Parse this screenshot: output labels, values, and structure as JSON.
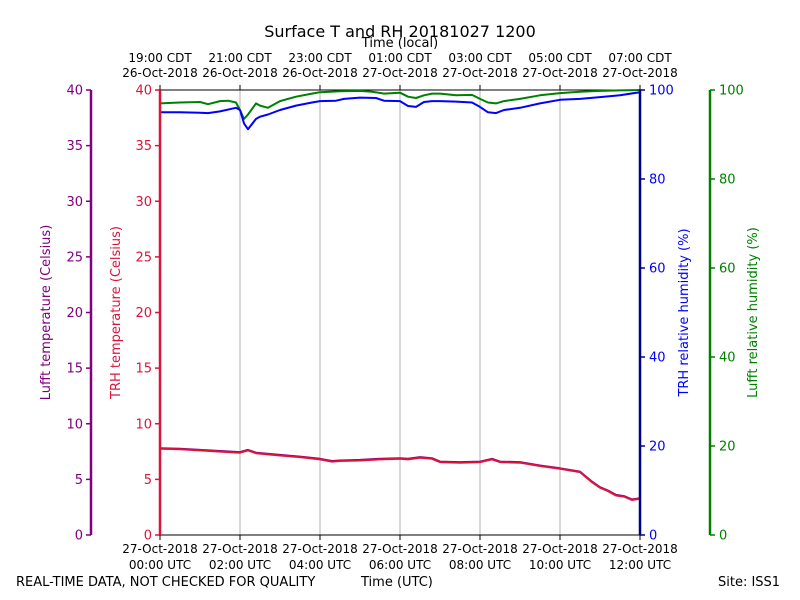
{
  "colors": {
    "lufft_temp": "#800080",
    "trh_temp": "#dc143c",
    "trh_rh": "#0000ff",
    "lufft_rh": "#008000",
    "grid": "#b0b0b0",
    "axis": "#000000",
    "trh_rh_axis": "#00008b"
  },
  "footer": {
    "left": "REAL-TIME DATA, NOT CHECKED FOR QUALITY",
    "center": "Time (UTC)",
    "right": "Site: ISS1"
  },
  "chart_data": {
    "type": "line",
    "title": "Surface T and RH 20181027 1200",
    "top_axis_label": "Time (local)",
    "xlabel": "Time (UTC)",
    "x_unit": "hours since 27-Oct-2018 00:00 UTC",
    "xlim": [
      0,
      12
    ],
    "x_ticks": [
      {
        "x": 0,
        "line1": "27-Oct-2018",
        "line2": "00:00 UTC"
      },
      {
        "x": 2,
        "line1": "27-Oct-2018",
        "line2": "02:00 UTC"
      },
      {
        "x": 4,
        "line1": "27-Oct-2018",
        "line2": "04:00 UTC"
      },
      {
        "x": 6,
        "line1": "27-Oct-2018",
        "line2": "06:00 UTC"
      },
      {
        "x": 8,
        "line1": "27-Oct-2018",
        "line2": "08:00 UTC"
      },
      {
        "x": 10,
        "line1": "27-Oct-2018",
        "line2": "10:00 UTC"
      },
      {
        "x": 12,
        "line1": "27-Oct-2018",
        "line2": "12:00 UTC"
      }
    ],
    "top_ticks": [
      {
        "x": 0,
        "line1": "19:00 CDT",
        "line2": "26-Oct-2018"
      },
      {
        "x": 2,
        "line1": "21:00 CDT",
        "line2": "26-Oct-2018"
      },
      {
        "x": 4,
        "line1": "23:00 CDT",
        "line2": "26-Oct-2018"
      },
      {
        "x": 6,
        "line1": "01:00 CDT",
        "line2": "27-Oct-2018"
      },
      {
        "x": 8,
        "line1": "03:00 CDT",
        "line2": "27-Oct-2018"
      },
      {
        "x": 10,
        "line1": "05:00 CDT",
        "line2": "27-Oct-2018"
      },
      {
        "x": 12,
        "line1": "07:00 CDT",
        "line2": "27-Oct-2018"
      }
    ],
    "axes": {
      "lufft_temp": {
        "label": "Lufft temperature (Celsius)",
        "lim": [
          0,
          40
        ],
        "ticks": [
          0,
          5,
          10,
          15,
          20,
          25,
          30,
          35,
          40
        ]
      },
      "trh_temp": {
        "label": "TRH temperature (Celsius)",
        "lim": [
          0,
          40
        ],
        "ticks": [
          0,
          5,
          10,
          15,
          20,
          25,
          30,
          35,
          40
        ]
      },
      "trh_rh": {
        "label": "TRH relative humidity (%)",
        "lim": [
          0,
          100
        ],
        "ticks": [
          0,
          20,
          40,
          60,
          80,
          100
        ]
      },
      "lufft_rh": {
        "label": "Lufft relative humidity (%)",
        "lim": [
          0,
          100
        ],
        "ticks": [
          0,
          20,
          40,
          60,
          80,
          100
        ]
      }
    },
    "series": [
      {
        "name": "Lufft relative humidity",
        "axis": "lufft_rh",
        "color": "#008000",
        "x": [
          0,
          0.5,
          1,
          1.2,
          1.5,
          1.7,
          1.9,
          2.0,
          2.1,
          2.2,
          2.4,
          2.5,
          2.7,
          3.0,
          3.4,
          3.8,
          4.0,
          4.5,
          5.0,
          5.3,
          5.6,
          6.0,
          6.2,
          6.4,
          6.6,
          6.8,
          7.0,
          7.4,
          7.8,
          8.0,
          8.2,
          8.4,
          8.6,
          9.0,
          9.5,
          10.0,
          10.5,
          11.0,
          11.5,
          12.0
        ],
        "y": [
          97,
          97.2,
          97.3,
          96.8,
          97.5,
          97.6,
          97.2,
          95.5,
          93.5,
          94.5,
          97.0,
          96.5,
          96.0,
          97.5,
          98.5,
          99.2,
          99.5,
          99.7,
          99.8,
          99.6,
          99.2,
          99.4,
          98.5,
          98.2,
          98.8,
          99.2,
          99.2,
          98.8,
          98.9,
          98.0,
          97.2,
          97.0,
          97.5,
          98.0,
          98.8,
          99.3,
          99.6,
          99.8,
          99.9,
          100
        ]
      },
      {
        "name": "TRH relative humidity",
        "axis": "trh_rh",
        "color": "#0000ff",
        "x": [
          0,
          0.5,
          1,
          1.2,
          1.5,
          1.8,
          1.9,
          2.0,
          2.1,
          2.2,
          2.4,
          2.5,
          2.7,
          3.0,
          3.4,
          3.8,
          4.0,
          4.4,
          4.6,
          5.0,
          5.4,
          5.6,
          6.0,
          6.2,
          6.4,
          6.6,
          6.8,
          7.0,
          7.4,
          7.8,
          8.0,
          8.2,
          8.4,
          8.6,
          9.0,
          9.5,
          10.0,
          10.5,
          11.0,
          11.5,
          12.0
        ],
        "y": [
          95,
          95,
          94.9,
          94.8,
          95.2,
          95.8,
          96.0,
          95.5,
          92.5,
          91.2,
          93.5,
          94.0,
          94.5,
          95.5,
          96.5,
          97.2,
          97.5,
          97.6,
          98.0,
          98.3,
          98.2,
          97.6,
          97.5,
          96.4,
          96.2,
          97.3,
          97.5,
          97.5,
          97.4,
          97.2,
          96.2,
          95.0,
          94.8,
          95.5,
          96.0,
          97.0,
          97.8,
          98.0,
          98.4,
          98.8,
          99.5
        ]
      },
      {
        "name": "Lufft temperature",
        "axis": "lufft_temp",
        "color": "#800080",
        "x": [
          0,
          0.5,
          1,
          1.5,
          2.0,
          2.2,
          2.4,
          3.0,
          3.5,
          4.0,
          4.3,
          4.5,
          5.0,
          5.5,
          6.0,
          6.2,
          6.5,
          6.8,
          7.0,
          7.5,
          8.0,
          8.3,
          8.5,
          9.0,
          9.5,
          10.0,
          10.5,
          10.8,
          11.0,
          11.2,
          11.4,
          11.6,
          11.8,
          12.0
        ],
        "y": [
          7.8,
          7.75,
          7.65,
          7.55,
          7.45,
          7.65,
          7.4,
          7.2,
          7.05,
          6.85,
          6.65,
          6.7,
          6.75,
          6.85,
          6.9,
          6.85,
          7.0,
          6.9,
          6.6,
          6.55,
          6.6,
          6.85,
          6.6,
          6.55,
          6.25,
          6.0,
          5.7,
          4.8,
          4.3,
          4.0,
          3.6,
          3.5,
          3.2,
          3.3
        ]
      },
      {
        "name": "TRH temperature",
        "axis": "trh_temp",
        "color": "#dc143c",
        "x": [
          0,
          0.5,
          1,
          1.5,
          2.0,
          2.2,
          2.4,
          3.0,
          3.5,
          4.0,
          4.3,
          4.5,
          5.0,
          5.5,
          6.0,
          6.2,
          6.5,
          6.8,
          7.0,
          7.5,
          8.0,
          8.3,
          8.5,
          9.0,
          9.5,
          10.0,
          10.5,
          10.8,
          11.0,
          11.2,
          11.4,
          11.6,
          11.8,
          12.0
        ],
        "y": [
          7.75,
          7.7,
          7.6,
          7.5,
          7.4,
          7.6,
          7.35,
          7.15,
          7.0,
          6.8,
          6.6,
          6.65,
          6.7,
          6.8,
          6.85,
          6.8,
          6.95,
          6.85,
          6.55,
          6.5,
          6.55,
          6.8,
          6.55,
          6.5,
          6.2,
          5.95,
          5.65,
          4.75,
          4.25,
          3.95,
          3.55,
          3.45,
          3.15,
          3.25
        ]
      }
    ]
  }
}
